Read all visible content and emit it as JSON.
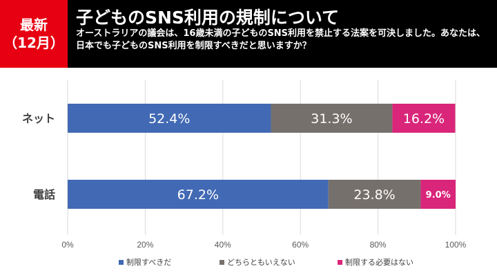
{
  "header": {
    "badge_line1": "最新",
    "badge_line2": "（12月）",
    "title": "子どものSNS利用の規制について",
    "question": "オーストラリアの議会は、16歳未満の子どものSNS利用を禁止する法案を可決しました。あなたは、日本でも子どものSNS利用を制限すべきだと思いますか？"
  },
  "colors": {
    "header_bg": "#000000",
    "badge_bg": "#e60012",
    "series": [
      "#4169b4",
      "#76706c",
      "#d9267a"
    ]
  },
  "chart_data": {
    "type": "bar",
    "orientation": "horizontal",
    "stacked": true,
    "categories": [
      "ネット",
      "電話"
    ],
    "series": [
      {
        "name": "制限すべきだ",
        "values": [
          52.4,
          67.2
        ],
        "labels": [
          "52.4%",
          "67.2%"
        ]
      },
      {
        "name": "どちらともいえない",
        "values": [
          31.3,
          23.8
        ],
        "labels": [
          "31.3%",
          "23.8%"
        ]
      },
      {
        "name": "制限する必要はない",
        "values": [
          16.2,
          9.0
        ],
        "labels": [
          "16.2%",
          "9.0%"
        ]
      }
    ],
    "xlim": [
      0,
      100
    ],
    "xticks": [
      "0%",
      "20%",
      "40%",
      "60%",
      "80%",
      "100%"
    ],
    "grid": true,
    "legend": "bottom"
  }
}
